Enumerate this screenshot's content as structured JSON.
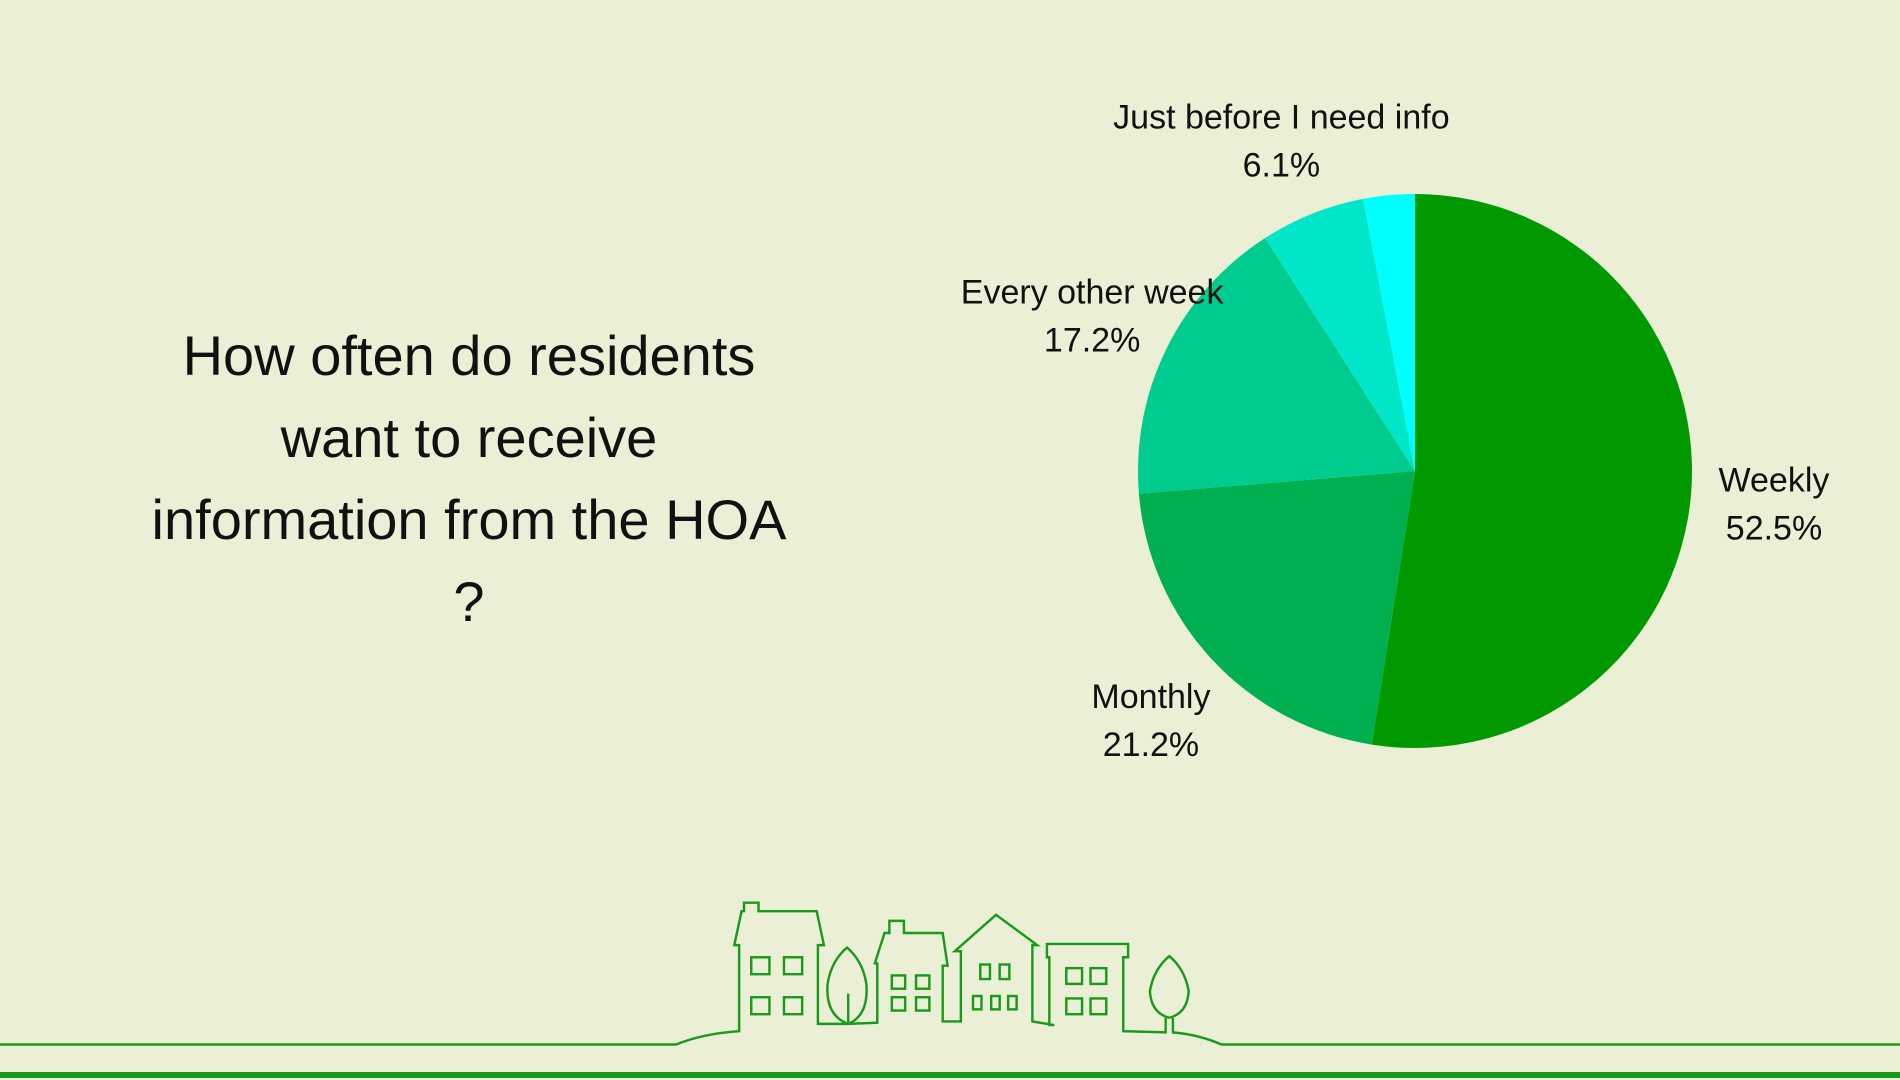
{
  "chart_data": {
    "type": "pie",
    "title": "How often do residents want to receive information from the HOA ?",
    "categories": [
      "Weekly",
      "Monthly",
      "Every other week",
      "Just before I need info",
      null
    ],
    "values": [
      52.5,
      21.2,
      17.2,
      6.1,
      3.0
    ],
    "value_labels": [
      "52.5%",
      "21.2%",
      "17.2%",
      "6.1%",
      null
    ],
    "colors": [
      "#009900",
      "#00b050",
      "#00cc90",
      "#00e6c8",
      "#00ffff"
    ]
  }
}
